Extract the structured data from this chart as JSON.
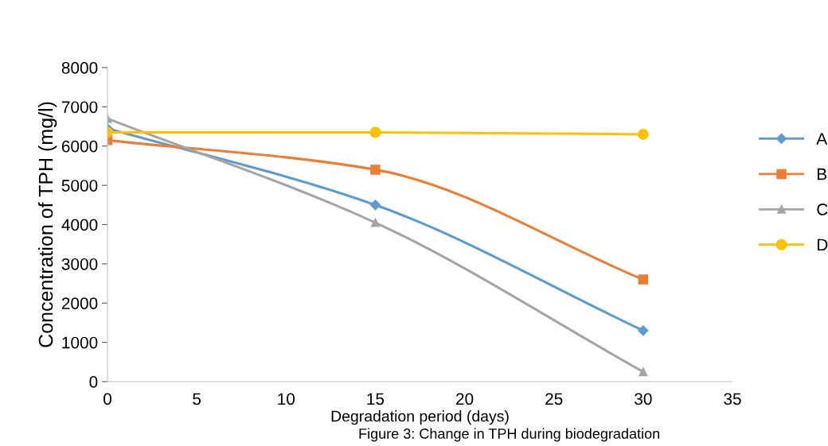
{
  "chart_data": {
    "type": "line",
    "xlabel": "Degradation period (days)",
    "ylabel": "Concentration of TPH (mg/l)",
    "x": [
      0,
      15,
      30
    ],
    "series": [
      {
        "name": "A",
        "color": "#5b9bd5",
        "marker": "diamond",
        "values": [
          6450,
          4500,
          1300
        ]
      },
      {
        "name": "B",
        "color": "#ed7d31",
        "marker": "square",
        "values": [
          6150,
          5400,
          2600
        ]
      },
      {
        "name": "C",
        "color": "#a5a5a5",
        "marker": "triangle",
        "values": [
          6700,
          4050,
          250
        ]
      },
      {
        "name": "D",
        "color": "#ffc000",
        "marker": "circle",
        "values": [
          6350,
          6350,
          6300
        ]
      }
    ],
    "xlim": [
      0,
      35
    ],
    "xticks": [
      0,
      5,
      10,
      15,
      20,
      25,
      30,
      35
    ],
    "ylim": [
      0,
      8000
    ],
    "yticks": [
      0,
      1000,
      2000,
      3000,
      4000,
      5000,
      6000,
      7000,
      8000
    ],
    "grid": false,
    "legend": "right",
    "line_style": "solid",
    "annotations": [
      "Figure 3: Change in TPH during biodegradation"
    ]
  }
}
